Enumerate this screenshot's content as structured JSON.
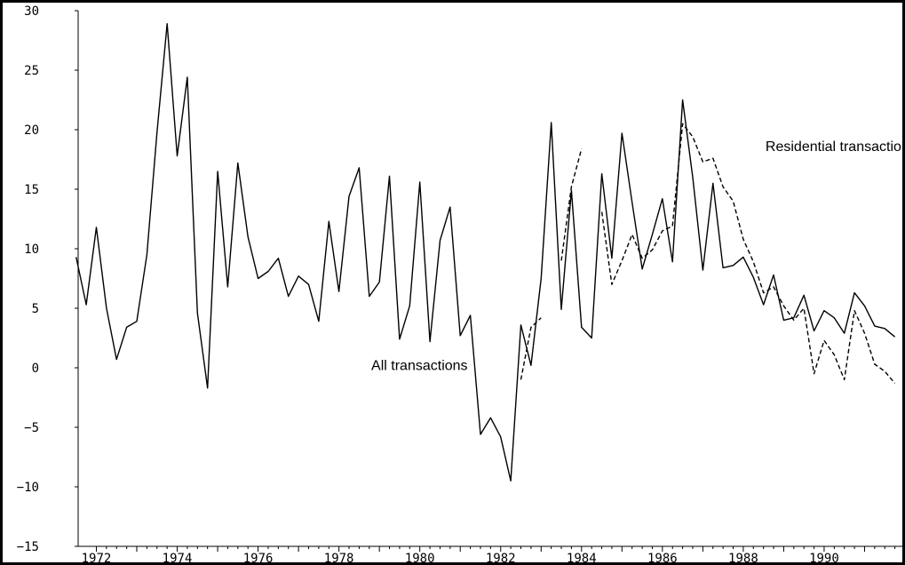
{
  "chart_data": {
    "type": "line",
    "title": "",
    "xlabel": "",
    "ylabel": "",
    "xlim": [
      1971.55,
      1992.0
    ],
    "ylim": [
      -15,
      30
    ],
    "grid": false,
    "y_ticks": [
      -15,
      -10,
      -5,
      0,
      5,
      10,
      15,
      20,
      25,
      30
    ],
    "y_tick_labels": [
      "−15",
      "−10",
      "−5",
      "0",
      "5",
      "10",
      "15",
      "20",
      "25",
      "30"
    ],
    "x_ticks": [
      1972,
      1974,
      1976,
      1978,
      1980,
      1982,
      1984,
      1986,
      1988,
      1990
    ],
    "x_tick_labels": [
      "1972",
      "1974",
      "1976",
      "1978",
      "1980",
      "1982",
      "1984",
      "1986",
      "1988",
      "1990"
    ],
    "annotations": [
      {
        "text": "All transactions",
        "x": 1978.8,
        "y": -0.2
      },
      {
        "text": "Residential transactions",
        "x": 1988.55,
        "y": 18.2
      }
    ],
    "series": [
      {
        "key": "all",
        "style": "solid",
        "color": "#000000",
        "points": [
          [
            1971.5,
            9.3
          ],
          [
            1971.75,
            5.3
          ],
          [
            1972.0,
            11.8
          ],
          [
            1972.25,
            5.0
          ],
          [
            1972.5,
            0.7
          ],
          [
            1972.75,
            3.4
          ],
          [
            1973.0,
            3.9
          ],
          [
            1973.25,
            9.5
          ],
          [
            1973.5,
            19.8
          ],
          [
            1973.75,
            28.9
          ],
          [
            1974.0,
            17.8
          ],
          [
            1974.25,
            24.4
          ],
          [
            1974.5,
            4.6
          ],
          [
            1974.75,
            -1.7
          ],
          [
            1975.0,
            16.5
          ],
          [
            1975.25,
            6.8
          ],
          [
            1975.5,
            17.2
          ],
          [
            1975.75,
            11.0
          ],
          [
            1976.0,
            7.5
          ],
          [
            1976.25,
            8.1
          ],
          [
            1976.5,
            9.2
          ],
          [
            1976.75,
            6.0
          ],
          [
            1977.0,
            7.7
          ],
          [
            1977.25,
            7.0
          ],
          [
            1977.5,
            3.9
          ],
          [
            1977.75,
            12.3
          ],
          [
            1978.0,
            6.4
          ],
          [
            1978.25,
            14.4
          ],
          [
            1978.5,
            16.8
          ],
          [
            1978.75,
            6.0
          ],
          [
            1979.0,
            7.2
          ],
          [
            1979.25,
            16.1
          ],
          [
            1979.5,
            2.4
          ],
          [
            1979.75,
            5.2
          ],
          [
            1980.0,
            15.6
          ],
          [
            1980.25,
            2.2
          ],
          [
            1980.5,
            10.7
          ],
          [
            1980.75,
            13.5
          ],
          [
            1981.0,
            2.7
          ],
          [
            1981.25,
            4.4
          ],
          [
            1981.5,
            -5.6
          ],
          [
            1981.75,
            -4.2
          ],
          [
            1982.0,
            -5.8
          ],
          [
            1982.25,
            -9.5
          ],
          [
            1982.5,
            3.6
          ],
          [
            1982.75,
            0.2
          ],
          [
            1983.0,
            7.5
          ],
          [
            1983.25,
            20.6
          ],
          [
            1983.5,
            4.9
          ],
          [
            1983.75,
            14.9
          ],
          [
            1984.0,
            3.4
          ],
          [
            1984.25,
            2.5
          ],
          [
            1984.5,
            16.3
          ],
          [
            1984.75,
            9.2
          ],
          [
            1985.0,
            19.7
          ],
          [
            1985.25,
            13.9
          ],
          [
            1985.5,
            8.3
          ],
          [
            1985.75,
            11.2
          ],
          [
            1986.0,
            14.2
          ],
          [
            1986.25,
            8.9
          ],
          [
            1986.5,
            22.5
          ],
          [
            1986.75,
            16.0
          ],
          [
            1987.0,
            8.2
          ],
          [
            1987.25,
            15.5
          ],
          [
            1987.5,
            8.4
          ],
          [
            1987.75,
            8.6
          ],
          [
            1988.0,
            9.3
          ],
          [
            1988.25,
            7.6
          ],
          [
            1988.5,
            5.3
          ],
          [
            1988.75,
            7.8
          ],
          [
            1989.0,
            4.0
          ],
          [
            1989.25,
            4.2
          ],
          [
            1989.5,
            6.1
          ],
          [
            1989.75,
            3.1
          ],
          [
            1990.0,
            4.8
          ],
          [
            1990.25,
            4.2
          ],
          [
            1990.5,
            2.9
          ],
          [
            1990.75,
            6.3
          ],
          [
            1991.0,
            5.2
          ],
          [
            1991.25,
            3.5
          ],
          [
            1991.5,
            3.3
          ],
          [
            1991.75,
            2.6
          ]
        ]
      },
      {
        "key": "residential_a",
        "style": "dashed",
        "color": "#000000",
        "points": [
          [
            1982.5,
            -1.0
          ],
          [
            1982.75,
            3.4
          ],
          [
            1983.0,
            4.2
          ]
        ]
      },
      {
        "key": "residential_b",
        "style": "dashed",
        "color": "#000000",
        "points": [
          [
            1983.5,
            9.0
          ],
          [
            1983.75,
            15.2
          ],
          [
            1984.0,
            18.4
          ]
        ]
      },
      {
        "key": "residential_c",
        "style": "dashed",
        "color": "#000000",
        "points": [
          [
            1984.5,
            13.1
          ],
          [
            1984.75,
            7.0
          ],
          [
            1985.0,
            9.0
          ],
          [
            1985.25,
            11.2
          ],
          [
            1985.5,
            9.2
          ],
          [
            1985.75,
            9.9
          ],
          [
            1986.0,
            11.5
          ],
          [
            1986.25,
            11.9
          ],
          [
            1986.5,
            20.5
          ],
          [
            1986.75,
            19.4
          ],
          [
            1987.0,
            17.3
          ],
          [
            1987.25,
            17.6
          ],
          [
            1987.5,
            15.2
          ],
          [
            1987.75,
            14.0
          ],
          [
            1988.0,
            10.8
          ],
          [
            1988.25,
            8.9
          ],
          [
            1988.5,
            6.3
          ],
          [
            1988.75,
            6.8
          ],
          [
            1989.0,
            5.2
          ],
          [
            1989.25,
            4.0
          ],
          [
            1989.5,
            5.0
          ],
          [
            1989.75,
            -0.5
          ],
          [
            1990.0,
            2.3
          ],
          [
            1990.25,
            1.1
          ],
          [
            1990.5,
            -1.0
          ],
          [
            1990.75,
            4.8
          ],
          [
            1991.0,
            2.9
          ],
          [
            1991.25,
            0.3
          ],
          [
            1991.5,
            -0.3
          ],
          [
            1991.75,
            -1.3
          ]
        ]
      }
    ]
  }
}
